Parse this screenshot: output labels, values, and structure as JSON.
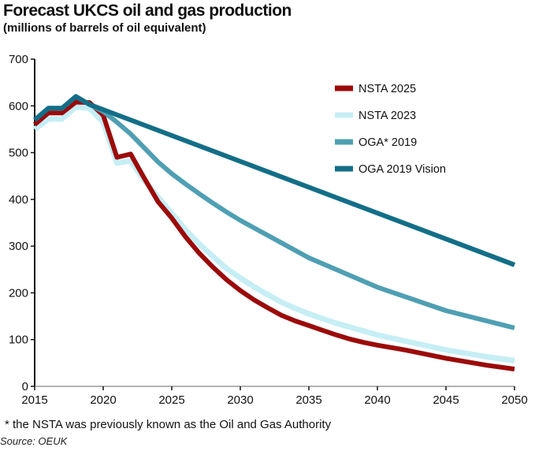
{
  "chart_data": {
    "type": "line",
    "title": "Forecast UKCS oil and gas production",
    "subtitle": "(millions of barrels of oil equivalent)",
    "xlim": [
      2015,
      2050
    ],
    "ylim": [
      0,
      700
    ],
    "xticks": [
      2015,
      2020,
      2025,
      2030,
      2035,
      2040,
      2045,
      2050
    ],
    "yticks": [
      0,
      100,
      200,
      300,
      400,
      500,
      600,
      700
    ],
    "grid": false,
    "legend_position": "top-right",
    "series": [
      {
        "name": "NSTA 2025",
        "color": "#9b0a0a",
        "x": [
          2015,
          2016,
          2017,
          2018,
          2019,
          2020,
          2021,
          2022,
          2023,
          2024,
          2025,
          2026,
          2027,
          2028,
          2029,
          2030,
          2031,
          2032,
          2033,
          2034,
          2035,
          2036,
          2037,
          2038,
          2039,
          2040,
          2042,
          2045,
          2048,
          2050
        ],
        "y": [
          560,
          585,
          585,
          608,
          607,
          580,
          490,
          497,
          445,
          395,
          360,
          320,
          285,
          255,
          228,
          205,
          185,
          168,
          152,
          140,
          130,
          120,
          110,
          101,
          94,
          88,
          78,
          60,
          45,
          37
        ]
      },
      {
        "name": "NSTA 2023",
        "color": "#c6eef5",
        "x": [
          2015,
          2016,
          2017,
          2018,
          2019,
          2020,
          2021,
          2022,
          2023,
          2024,
          2025,
          2026,
          2027,
          2028,
          2029,
          2030,
          2031,
          2032,
          2033,
          2034,
          2035,
          2037,
          2040,
          2042,
          2045,
          2048,
          2050
        ],
        "y": [
          550,
          572,
          572,
          598,
          595,
          565,
          478,
          482,
          440,
          405,
          370,
          335,
          305,
          278,
          252,
          232,
          213,
          196,
          180,
          167,
          155,
          135,
          110,
          97,
          78,
          63,
          55
        ]
      },
      {
        "name": "OGA* 2019",
        "color": "#4f9fb3",
        "x": [
          2015,
          2016,
          2017,
          2018,
          2019,
          2020,
          2021,
          2022,
          2023,
          2024,
          2025,
          2026,
          2027,
          2028,
          2029,
          2030,
          2035,
          2040,
          2045,
          2050
        ],
        "y": [
          570,
          595,
          595,
          620,
          603,
          588,
          565,
          540,
          510,
          480,
          455,
          433,
          412,
          392,
          373,
          355,
          275,
          212,
          162,
          125
        ]
      },
      {
        "name": "OGA 2019 Vision",
        "color": "#136e87",
        "x": [
          2015,
          2016,
          2017,
          2018,
          2019,
          2050
        ],
        "y": [
          570,
          595,
          595,
          620,
          603,
          260
        ]
      }
    ]
  },
  "footnote": "* the NSTA was previously known as the Oil and Gas Authority",
  "source": "Source: OEUK"
}
